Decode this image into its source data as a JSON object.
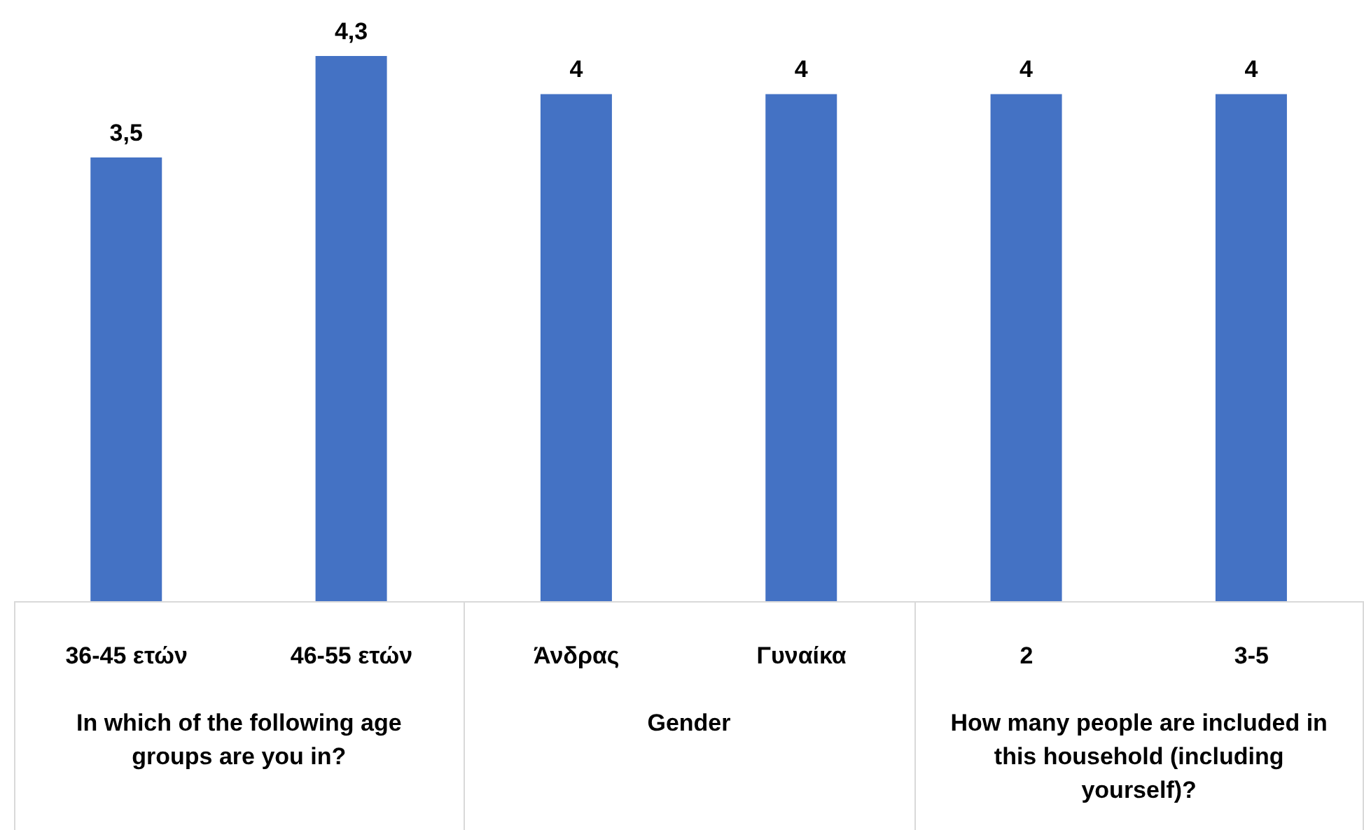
{
  "chart_data": {
    "type": "bar",
    "categories": [
      "36-45 ετών",
      "46-55 ετών",
      "Άνδρας",
      "Γυναίκα",
      "2",
      "3-5"
    ],
    "values": [
      3.5,
      4.3,
      4,
      4,
      4,
      4
    ],
    "value_labels": [
      "3,5",
      "4,3",
      "4",
      "4",
      "4",
      "4"
    ],
    "color": "#4472c4",
    "annotations": [
      "In which of the following age groups are you in?",
      "Gender",
      "How many people are included in this household (including yourself)?"
    ]
  }
}
